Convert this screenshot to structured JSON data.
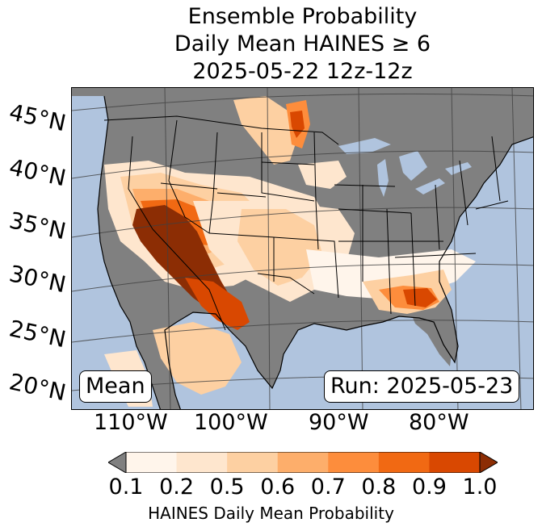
{
  "title": {
    "line1": "Ensemble Probability",
    "line2": "Daily Mean HAINES ≥ 6",
    "line3": "2025-05-22 12z-12z"
  },
  "latitude_labels": [
    "45°N",
    "40°N",
    "35°N",
    "30°N",
    "25°N",
    "20°N"
  ],
  "longitude_labels": [
    "110°W",
    "100°W",
    "90°W",
    "80°W"
  ],
  "mean_label": "Mean",
  "run_label": "Run: 2025-05-23",
  "colorbar": {
    "label": "HAINES Daily Mean Probability",
    "ticks": [
      "0.1",
      "0.2",
      "0.5",
      "0.6",
      "0.7",
      "0.8",
      "0.9",
      "1.0"
    ],
    "colors": [
      "#fff5eb",
      "#fee6ce",
      "#fdd0a2",
      "#fdae6b",
      "#fd8d3c",
      "#f16913",
      "#d94801"
    ],
    "under_color": "#808080",
    "over_color": "#8c2d04"
  },
  "colors": {
    "ocean": "#b0c4de",
    "land_below_threshold": "#808080",
    "borders": "#000000"
  }
}
